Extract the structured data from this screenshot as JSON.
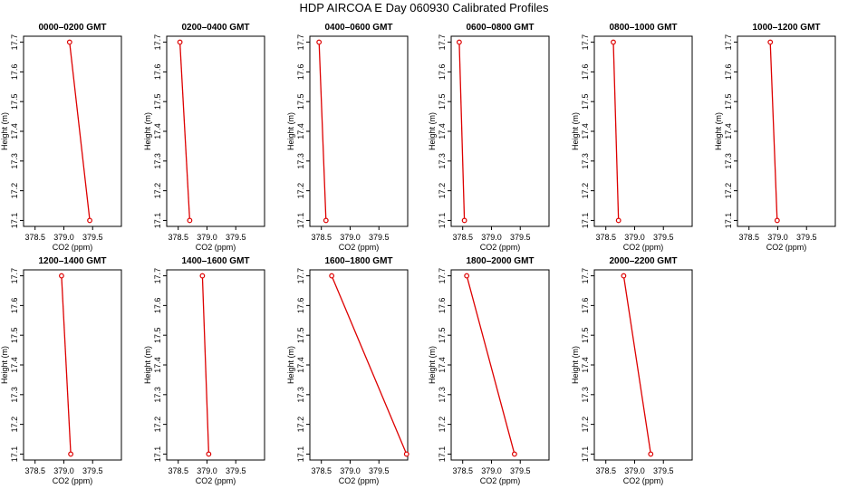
{
  "title": "HDP  AIRCOA E  Day 060930  Calibrated Profiles",
  "colors": {
    "line": "#dd0000",
    "frame": "#000000",
    "background": "#ffffff"
  },
  "chart_data": {
    "type": "line",
    "layout": "small-multiples",
    "xlabel": "CO2 (ppm)",
    "ylabel": "Height (m)",
    "xlim": [
      378.3,
      380.0
    ],
    "ylim": [
      17.08,
      17.72
    ],
    "xticks": [
      "378.5",
      "379.0",
      "379.5"
    ],
    "yticks": [
      "17.1",
      "17.2",
      "17.3",
      "17.4",
      "17.5",
      "17.6",
      "17.7"
    ],
    "grid": false,
    "panels": [
      {
        "title": "0000–0200 GMT",
        "points": [
          {
            "x": 379.1,
            "y": 17.7
          },
          {
            "x": 379.45,
            "y": 17.1
          }
        ]
      },
      {
        "title": "0200–0400 GMT",
        "points": [
          {
            "x": 378.53,
            "y": 17.7
          },
          {
            "x": 378.7,
            "y": 17.1
          }
        ]
      },
      {
        "title": "0400–0600 GMT",
        "points": [
          {
            "x": 378.46,
            "y": 17.7
          },
          {
            "x": 378.58,
            "y": 17.1
          }
        ]
      },
      {
        "title": "0600–0800 GMT",
        "points": [
          {
            "x": 378.44,
            "y": 17.7
          },
          {
            "x": 378.53,
            "y": 17.1
          }
        ]
      },
      {
        "title": "0800–1000 GMT",
        "points": [
          {
            "x": 378.63,
            "y": 17.7
          },
          {
            "x": 378.72,
            "y": 17.1
          }
        ]
      },
      {
        "title": "1000–1200 GMT",
        "points": [
          {
            "x": 378.87,
            "y": 17.7
          },
          {
            "x": 378.99,
            "y": 17.1
          }
        ]
      },
      {
        "title": "1200–1400 GMT",
        "points": [
          {
            "x": 378.96,
            "y": 17.7
          },
          {
            "x": 379.12,
            "y": 17.1
          }
        ]
      },
      {
        "title": "1400–1600 GMT",
        "points": [
          {
            "x": 378.92,
            "y": 17.7
          },
          {
            "x": 379.03,
            "y": 17.1
          }
        ]
      },
      {
        "title": "1600–1800 GMT",
        "points": [
          {
            "x": 378.68,
            "y": 17.7
          },
          {
            "x": 379.98,
            "y": 17.1
          }
        ]
      },
      {
        "title": "1800–2000 GMT",
        "points": [
          {
            "x": 378.57,
            "y": 17.7
          },
          {
            "x": 379.4,
            "y": 17.1
          }
        ]
      },
      {
        "title": "2000–2200 GMT",
        "points": [
          {
            "x": 378.81,
            "y": 17.7
          },
          {
            "x": 379.28,
            "y": 17.1
          }
        ]
      }
    ]
  }
}
